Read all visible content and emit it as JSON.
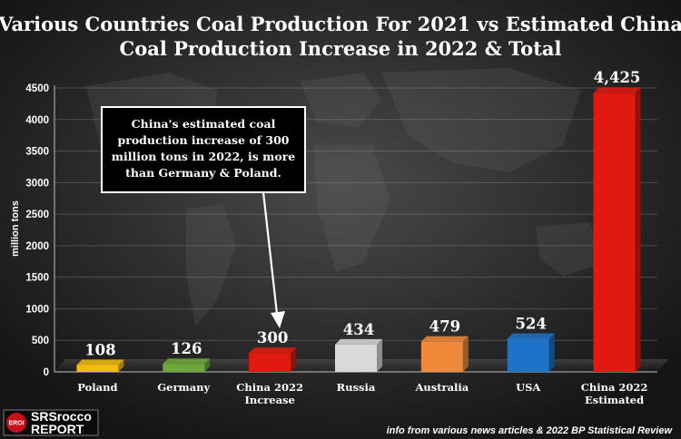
{
  "chart_data": {
    "type": "bar",
    "title": [
      "Various Countries Coal Production For 2021 vs Estimated China",
      "Coal Production Increase in 2022 & Total"
    ],
    "ylabel": "million tons",
    "ylim": [
      0,
      4500
    ],
    "yticks": [
      0,
      500,
      1000,
      1500,
      2000,
      2500,
      3000,
      3500,
      4000,
      4500
    ],
    "categories": [
      [
        "Poland"
      ],
      [
        "Germany"
      ],
      [
        "China 2022",
        "Increase"
      ],
      [
        "Russia"
      ],
      [
        "Australia"
      ],
      [
        "USA"
      ],
      [
        "China 2022",
        "Estimated"
      ]
    ],
    "values": [
      108,
      126,
      300,
      434,
      479,
      524,
      4425
    ],
    "value_labels": [
      "108",
      "126",
      "300",
      "434",
      "479",
      "524",
      "4,425"
    ],
    "colors": [
      "#f2bc10",
      "#6ea83a",
      "#e01a10",
      "#d9d9d9",
      "#f08a3a",
      "#1e72c8",
      "#e01a10"
    ],
    "annotation": {
      "lines": [
        "China's estimated coal",
        "production increase of 300",
        "million tons in 2022, is more",
        "than Germany & Poland."
      ],
      "points_to": "China 2022 Increase"
    },
    "grid": true,
    "legend": "none"
  },
  "source_note": "info from various news articles & 2022 BP Statistical Review",
  "logo": {
    "badge": "EROI",
    "line1": "SRSrocco",
    "line2": "REPORT"
  }
}
